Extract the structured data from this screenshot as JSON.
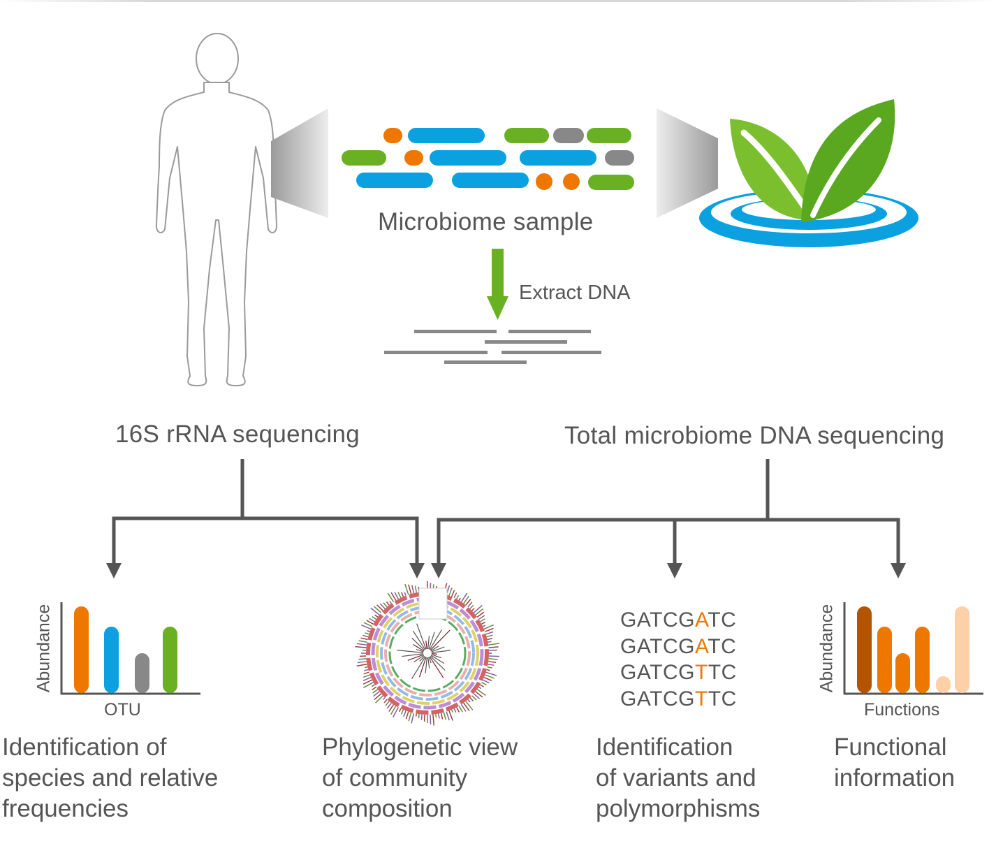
{
  "header": {
    "sample_label": "Microbiome sample",
    "extract_label": "Extract DNA"
  },
  "methods": {
    "left": "16S rRNA sequencing",
    "right": "Total microbiome DNA sequencing"
  },
  "panels": [
    {
      "caption": "Identification of\nspecies and relative\nfrequencies",
      "ylabel": "Abundance",
      "xlabel": "OTU"
    },
    {
      "caption": "Phylogenetic view\nof community\ncomposition"
    },
    {
      "caption": "Identification\nof variants and\npolymorphisms"
    },
    {
      "caption": "Functional\ninformation",
      "ylabel": "Abundance",
      "xlabel": "Functions"
    }
  ],
  "sequences": [
    {
      "prefix": "GATCG",
      "variant": "A",
      "suffix": "TC"
    },
    {
      "prefix": "GATCG",
      "variant": "A",
      "suffix": "TC"
    },
    {
      "prefix": "GATCG",
      "variant": "T",
      "suffix": "TC"
    },
    {
      "prefix": "GATCG",
      "variant": "T",
      "suffix": "TC"
    }
  ],
  "colors": {
    "orange": "#ee7700",
    "blue": "#0ba0e0",
    "gray": "#888888",
    "green": "#6ab023",
    "dark_orange": "#b35400",
    "peach": "#fdd0a8",
    "arrow_gray": "#555555"
  },
  "icons": [
    "human-silhouette-icon",
    "leaf-water-icon",
    "phylogenetic-tree-icon"
  ]
}
